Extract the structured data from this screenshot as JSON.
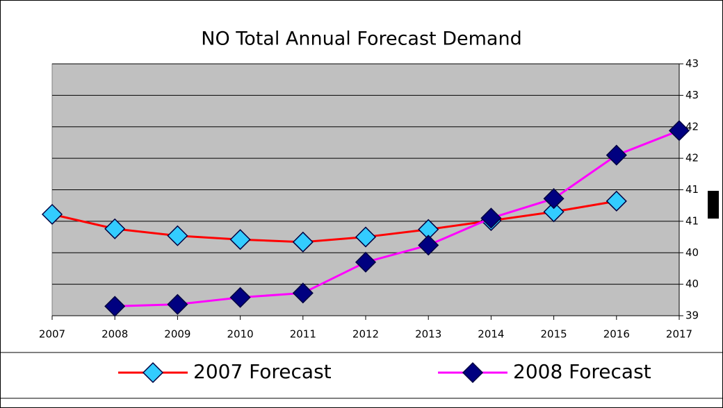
{
  "chart_data": {
    "type": "line",
    "title": "NO Total Annual Forecast Demand",
    "categories": [
      "2007",
      "2008",
      "2009",
      "2010",
      "2011",
      "2012",
      "2013",
      "2014",
      "2015",
      "2016",
      "2017"
    ],
    "series": [
      {
        "name": "2007 Forecast",
        "color": "#ff0000",
        "marker_color": "#33ccff",
        "values": [
          40.61,
          40.38,
          40.27,
          40.21,
          40.17,
          40.25,
          40.37,
          40.51,
          40.65,
          40.82,
          null
        ]
      },
      {
        "name": "2008 Forecast",
        "color": "#ff00ff",
        "marker_color": "#000080",
        "values": [
          null,
          39.15,
          39.18,
          39.29,
          39.36,
          39.85,
          40.12,
          40.55,
          40.86,
          41.55,
          41.94
        ]
      }
    ],
    "ylim": [
      39,
      43
    ],
    "yticks": [
      39,
      {
        "value": 39.5,
        "label": "40"
      },
      40,
      {
        "value": 40.5,
        "label": "41"
      },
      41,
      {
        "value": 41.5,
        "label": "42"
      },
      42,
      {
        "value": 42.5,
        "label": "43"
      },
      43
    ],
    "grid": true,
    "plot_background": "#c0c0c0",
    "legend": "bottom"
  }
}
